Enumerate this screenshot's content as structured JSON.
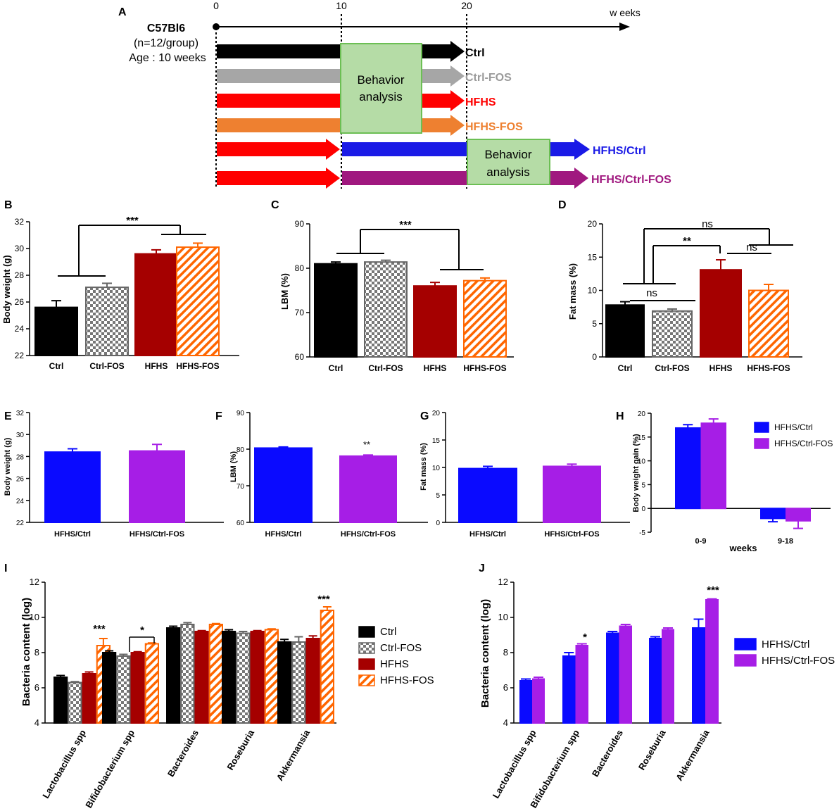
{
  "colors": {
    "ctrl": "#000000",
    "ctrl_fos": "#8a8a8a",
    "hfhs": "#a50000",
    "hfhs_fos": "#ff6600",
    "hfhs_ctrl": "#0a0aff",
    "hfhs_ctrl_fos": "#a61ee6",
    "behavior_box": "#b5dca6",
    "behavior_border": "#6cbf54",
    "tl_ctrl_fos": "#a6a6a6",
    "tl_hfhs_fos": "#ee8030",
    "tl_blue": "#1a1ae6",
    "tl_purple": "#a0187f"
  },
  "timeline": {
    "panel_label": "A",
    "strain": "C57Bl6",
    "group": "(n=12/group)",
    "age": "Age : 10 weeks",
    "axis_unit": "w eeks",
    "ticks": [
      "0",
      "10",
      "20"
    ],
    "behavior_text1": "Behavior",
    "behavior_text2": "analysis",
    "arms": [
      "Ctrl",
      "Ctrl-FOS",
      "HFHS",
      "HFHS-FOS",
      "HFHS/Ctrl",
      "HFHS/Ctrl-FOS"
    ]
  },
  "chart_data": [
    {
      "id": "B",
      "panel": "B",
      "type": "bar",
      "ylabel": "Body weight (g)",
      "categories": [
        "Ctrl",
        "Ctrl-FOS",
        "HFHS",
        "HFHS-FOS"
      ],
      "values": [
        25.6,
        27.1,
        29.6,
        30.1
      ],
      "errors": [
        0.5,
        0.3,
        0.3,
        0.3
      ],
      "ylim": [
        22,
        32
      ],
      "yticks": [
        22,
        24,
        26,
        28,
        30,
        32
      ],
      "annotations": [
        "***"
      ]
    },
    {
      "id": "C",
      "panel": "C",
      "type": "bar",
      "ylabel": "LBM (%)",
      "categories": [
        "Ctrl",
        "Ctrl-FOS",
        "HFHS",
        "HFHS-FOS"
      ],
      "values": [
        81.0,
        81.4,
        76.0,
        77.2
      ],
      "errors": [
        0.4,
        0.4,
        0.8,
        0.6
      ],
      "ylim": [
        60,
        90
      ],
      "yticks": [
        60,
        70,
        80,
        90
      ],
      "annotations": [
        "***"
      ]
    },
    {
      "id": "D",
      "panel": "D",
      "type": "bar",
      "ylabel": "Fat mass (%)",
      "categories": [
        "Ctrl",
        "Ctrl-FOS",
        "HFHS",
        "HFHS-FOS"
      ],
      "values": [
        7.8,
        6.9,
        13.1,
        10.0
      ],
      "errors": [
        0.5,
        0.3,
        1.5,
        0.9
      ],
      "ylim": [
        0,
        20
      ],
      "yticks": [
        0,
        5,
        10,
        15,
        20
      ],
      "annotations": [
        "ns",
        "**",
        "ns",
        "ns"
      ]
    },
    {
      "id": "E",
      "panel": "E",
      "type": "bar",
      "ylabel": "Body weight (g)",
      "categories": [
        "HFHS/Ctrl",
        "HFHS/Ctrl-FOS"
      ],
      "values": [
        28.4,
        28.5
      ],
      "errors": [
        0.3,
        0.6
      ],
      "ylim": [
        22,
        32
      ],
      "yticks": [
        22,
        24,
        26,
        28,
        30,
        32
      ],
      "annotations": []
    },
    {
      "id": "F",
      "panel": "F",
      "type": "bar",
      "ylabel": "LBM (%)",
      "categories": [
        "HFHS/Ctrl",
        "HFHS/Ctrl-FOS"
      ],
      "values": [
        80.3,
        78.1
      ],
      "errors": [
        0.3,
        0.3
      ],
      "ylim": [
        60,
        90
      ],
      "yticks": [
        60,
        70,
        80,
        90
      ],
      "annotations": [
        "**"
      ]
    },
    {
      "id": "G",
      "panel": "G",
      "type": "bar",
      "ylabel": "Fat mass (%)",
      "categories": [
        "HFHS/Ctrl",
        "HFHS/Ctrl-FOS"
      ],
      "values": [
        9.8,
        10.2
      ],
      "errors": [
        0.4,
        0.4
      ],
      "ylim": [
        0,
        20
      ],
      "yticks": [
        0,
        5,
        10,
        15,
        20
      ],
      "annotations": []
    },
    {
      "id": "H",
      "panel": "H",
      "type": "bar",
      "ylabel": "Body weight gain (%)",
      "xlabel": "weeks",
      "categories": [
        "0-9",
        "9-18"
      ],
      "series": [
        {
          "name": "HFHS/Ctrl",
          "values": [
            16.9,
            -2.1
          ],
          "errors": [
            0.7,
            0.7
          ]
        },
        {
          "name": "HFHS/Ctrl-FOS",
          "values": [
            17.9,
            -2.6
          ],
          "errors": [
            0.9,
            1.6
          ]
        }
      ],
      "ylim": [
        -5,
        20
      ],
      "yticks": [
        -5,
        0,
        5,
        10,
        15,
        20
      ],
      "legend": "top-right"
    },
    {
      "id": "I",
      "panel": "I",
      "type": "bar",
      "ylabel": "Bacteria content (log)",
      "categories": [
        "Lactobacillus spp",
        "Bifidobacterium spp",
        "Bacteroides",
        "Roseburia",
        "Akkermansia"
      ],
      "series": [
        {
          "name": "Ctrl",
          "values": [
            6.6,
            8.0,
            9.4,
            9.2,
            8.6
          ],
          "errors": [
            0.1,
            0.1,
            0.1,
            0.1,
            0.15
          ]
        },
        {
          "name": "Ctrl-FOS",
          "values": [
            6.3,
            7.8,
            9.6,
            9.1,
            8.6
          ],
          "errors": [
            0.05,
            0.1,
            0.1,
            0.1,
            0.3
          ]
        },
        {
          "name": "HFHS",
          "values": [
            6.8,
            8.0,
            9.2,
            9.2,
            8.8
          ],
          "errors": [
            0.1,
            0.05,
            0.05,
            0.05,
            0.15
          ]
        },
        {
          "name": "HFHS-FOS",
          "values": [
            8.4,
            8.5,
            9.6,
            9.3,
            10.4
          ],
          "errors": [
            0.4,
            0.05,
            0.05,
            0.05,
            0.2
          ]
        }
      ],
      "ylim": [
        4,
        12
      ],
      "yticks": [
        4,
        6,
        8,
        10,
        12
      ],
      "legend": "right",
      "annotations": [
        "***",
        "*",
        "***"
      ]
    },
    {
      "id": "J",
      "panel": "J",
      "type": "bar",
      "ylabel": "Bacteria content (log)",
      "categories": [
        "Lactobacillus spp",
        "Bifidobacterium spp",
        "Bacteroides",
        "Roseburia",
        "Akkermansia"
      ],
      "series": [
        {
          "name": "HFHS/Ctrl",
          "values": [
            6.4,
            7.8,
            9.1,
            8.8,
            9.4
          ],
          "errors": [
            0.1,
            0.2,
            0.1,
            0.1,
            0.5
          ]
        },
        {
          "name": "HFHS/Ctrl-FOS",
          "values": [
            6.5,
            8.4,
            9.5,
            9.3,
            11.0
          ],
          "errors": [
            0.1,
            0.1,
            0.1,
            0.1,
            0.05
          ]
        }
      ],
      "ylim": [
        4,
        12
      ],
      "yticks": [
        4,
        6,
        8,
        10,
        12
      ],
      "legend": "right",
      "annotations": [
        "*",
        "***"
      ]
    }
  ]
}
